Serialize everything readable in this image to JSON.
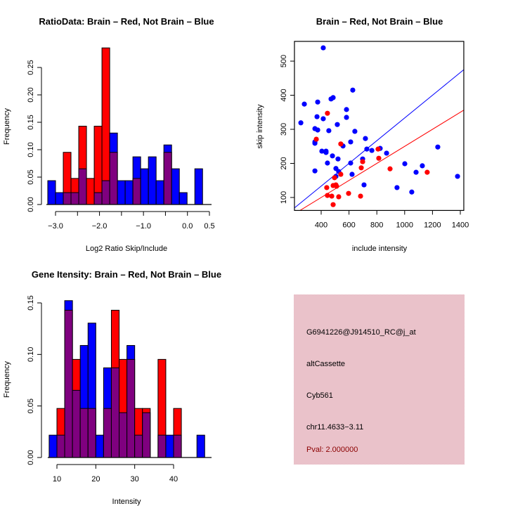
{
  "colors": {
    "brain": "#ff0000",
    "not_brain": "#0000ff",
    "overlap": "#7f007f",
    "info_panel": "#ecc4cc",
    "pval_text": "#8b0000"
  },
  "chart_data": [
    {
      "id": "ratio-histogram",
      "type": "bar",
      "title": "RatioData: Brain – Red, Not Brain – Blue",
      "xlabel": "Log2 Ratio Skip/Include",
      "ylabel": "Frequency",
      "xlim": [
        -3.18,
        0.35
      ],
      "ylim": [
        0,
        0.25
      ],
      "xticks": [
        -3.0,
        -2.5,
        -2.0,
        -1.5,
        -1.0,
        -0.5,
        0.0,
        0.5
      ],
      "xtick_labels": [
        "−3.0",
        "",
        "−2.0",
        "",
        "−1.0",
        "",
        "0.0",
        "0.5"
      ],
      "yticks": [
        0.0,
        0.05,
        0.1,
        0.15,
        0.2,
        0.25
      ],
      "ytick_labels": [
        "0.00",
        "0.05",
        "0.10",
        "0.15",
        "0.20",
        "0.25"
      ],
      "bin_start": -3.176,
      "bin_width": 0.176,
      "series": [
        {
          "name": "Not Brain (Blue)",
          "color": "#0000ff",
          "values": [
            0.0435,
            0.0217,
            0.0217,
            0.0217,
            0.0652,
            0,
            0.0217,
            0.0435,
            0.1304,
            0.0435,
            0.0435,
            0.087,
            0.0652,
            0.087,
            0.0435,
            0.1087,
            0.0652,
            0.0217,
            0,
            0.0652
          ]
        },
        {
          "name": "Brain (Red)",
          "color": "#ff0000",
          "values": [
            0,
            0,
            0.0952,
            0.0476,
            0.1429,
            0.0476,
            0.1429,
            0.2857,
            0.0952,
            0,
            0,
            0.0476,
            0,
            0,
            0,
            0.0952,
            0,
            0,
            0,
            0
          ]
        }
      ]
    },
    {
      "id": "intensity-scatter",
      "type": "scatter",
      "title": "Brain – Red, Not Brain – Blue",
      "xlabel": "include intensity",
      "ylabel": "skip intensity",
      "xlim": [
        208,
        1425
      ],
      "ylim": [
        62,
        558
      ],
      "xticks": [
        400,
        600,
        800,
        1000,
        1200,
        1400
      ],
      "yticks": [
        100,
        200,
        300,
        400,
        500
      ],
      "lines": [
        {
          "name": "blue reference line",
          "color": "#0000ff",
          "slope": 0.3333,
          "intercept": 0
        },
        {
          "name": "red reference line",
          "color": "#ff0000",
          "slope": 0.25,
          "intercept": 0
        }
      ],
      "series": [
        {
          "name": "Not Brain (Blue)",
          "color": "#0000ff",
          "points": [
            [
              415,
              539
            ],
            [
              627,
              415
            ],
            [
              471,
              389
            ],
            [
              486,
              393
            ],
            [
              279,
              374
            ],
            [
              375,
              380
            ],
            [
              582,
              358
            ],
            [
              370,
              337
            ],
            [
              415,
              331
            ],
            [
              582,
              335
            ],
            [
              254,
              319
            ],
            [
              516,
              314
            ],
            [
              355,
              302
            ],
            [
              375,
              298
            ],
            [
              455,
              296
            ],
            [
              642,
              294
            ],
            [
              355,
              263
            ],
            [
              355,
              259
            ],
            [
              557,
              251
            ],
            [
              612,
              263
            ],
            [
              718,
              273
            ],
            [
              405,
              236
            ],
            [
              435,
              236
            ],
            [
              435,
              232
            ],
            [
              481,
              222
            ],
            [
              521,
              213
            ],
            [
              728,
              242
            ],
            [
              764,
              238
            ],
            [
              824,
              244
            ],
            [
              698,
              213
            ],
            [
              445,
              201
            ],
            [
              612,
              201
            ],
            [
              506,
              185
            ],
            [
              355,
              178
            ],
            [
              526,
              176
            ],
            [
              506,
              162
            ],
            [
              622,
              168
            ],
            [
              708,
              137
            ],
            [
              870,
              230
            ],
            [
              1001,
              199
            ],
            [
              1127,
              193
            ],
            [
              1082,
              174
            ],
            [
              945,
              129
            ],
            [
              1051,
              116
            ],
            [
              1238,
              248
            ],
            [
              1380,
              162
            ]
          ]
        },
        {
          "name": "Brain (Red)",
          "color": "#ff0000",
          "points": [
            [
              445,
              347
            ],
            [
              365,
              271
            ],
            [
              541,
              257
            ],
            [
              809,
              242
            ],
            [
              814,
              215
            ],
            [
              698,
              205
            ],
            [
              541,
              168
            ],
            [
              688,
              187
            ],
            [
              496,
              158
            ],
            [
              895,
              184
            ],
            [
              440,
              129
            ],
            [
              486,
              135
            ],
            [
              506,
              137
            ],
            [
              511,
              133
            ],
            [
              445,
              106
            ],
            [
              476,
              104
            ],
            [
              526,
              102
            ],
            [
              597,
              112
            ],
            [
              683,
              104
            ],
            [
              486,
              79
            ],
            [
              1162,
              174
            ]
          ]
        }
      ]
    },
    {
      "id": "gene-intensity-histogram",
      "type": "bar",
      "title": "Gene Itensity: Brain – Red, Not Brain – Blue",
      "xlabel": "Intensity",
      "ylabel": "Frequency",
      "xlim": [
        7.8,
        49
      ],
      "ylim": [
        0,
        0.15
      ],
      "xticks": [
        10,
        20,
        30,
        40
      ],
      "yticks": [
        0.0,
        0.05,
        0.1,
        0.15
      ],
      "ytick_labels": [
        "0.00",
        "0.05",
        "0.10",
        "0.15"
      ],
      "bin_start": 8,
      "bin_width": 2,
      "series": [
        {
          "name": "Not Brain (Blue)",
          "color": "#0000ff",
          "values": [
            0.0217,
            0.0217,
            0.1522,
            0.0652,
            0.1087,
            0.1304,
            0.0217,
            0.087,
            0.087,
            0.0435,
            0.1087,
            0.0217,
            0.0435,
            0,
            0.0217,
            0.0217,
            0.0217,
            0,
            0,
            0.0217
          ]
        },
        {
          "name": "Brain (Red)",
          "color": "#ff0000",
          "values": [
            0,
            0.0476,
            0.1429,
            0.0952,
            0.0476,
            0.0476,
            0,
            0.0476,
            0.1429,
            0.0952,
            0.0952,
            0.0476,
            0.0476,
            0,
            0.0952,
            0,
            0.0476,
            0,
            0,
            0
          ]
        }
      ]
    }
  ],
  "info_panel": {
    "probe_id": "G6941226@J914510_RC@j_at",
    "event_type": "altCassette",
    "gene": "Cyb561",
    "location": "chr11.4633−3.11",
    "pval": "Pval: 2.000000"
  }
}
